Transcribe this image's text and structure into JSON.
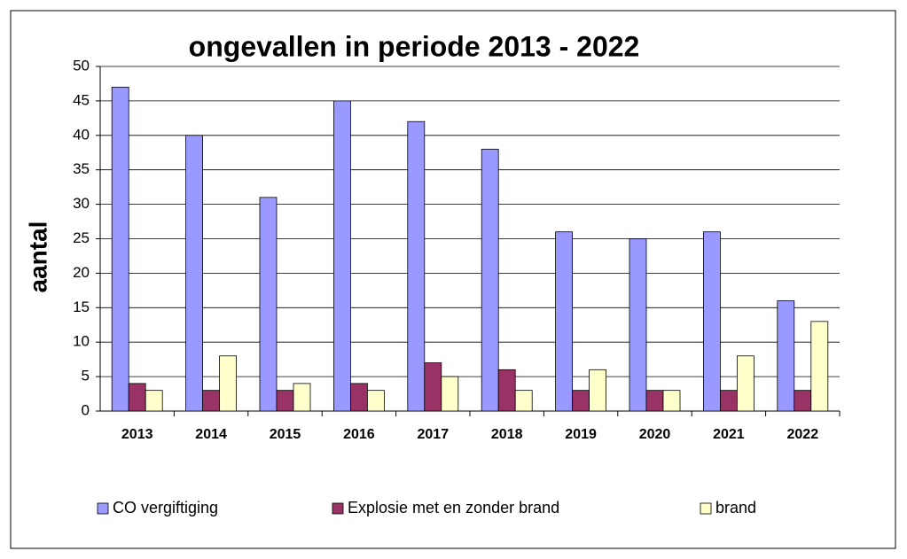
{
  "chart_data": {
    "type": "bar",
    "title": "ongevallen in periode 2013 - 2022",
    "y_label": "aantal",
    "categories": [
      "2013",
      "2014",
      "2015",
      "2016",
      "2017",
      "2018",
      "2019",
      "2020",
      "2021",
      "2022"
    ],
    "series": [
      {
        "name": "CO vergiftiging",
        "color": "#9999ff",
        "values": [
          47,
          40,
          31,
          45,
          42,
          38,
          26,
          25,
          26,
          16
        ]
      },
      {
        "name": "Explosie met en zonder brand",
        "color": "#993366",
        "values": [
          4,
          3,
          3,
          4,
          7,
          6,
          3,
          3,
          3,
          3
        ]
      },
      {
        "name": "brand",
        "color": "#ffffcc",
        "values": [
          3,
          8,
          4,
          3,
          5,
          3,
          6,
          3,
          8,
          13
        ]
      }
    ],
    "ylim": [
      0,
      50
    ],
    "yticks": [
      0,
      5,
      10,
      15,
      20,
      25,
      30,
      35,
      40,
      45,
      50
    ],
    "grid": true,
    "legend": "bottom"
  }
}
